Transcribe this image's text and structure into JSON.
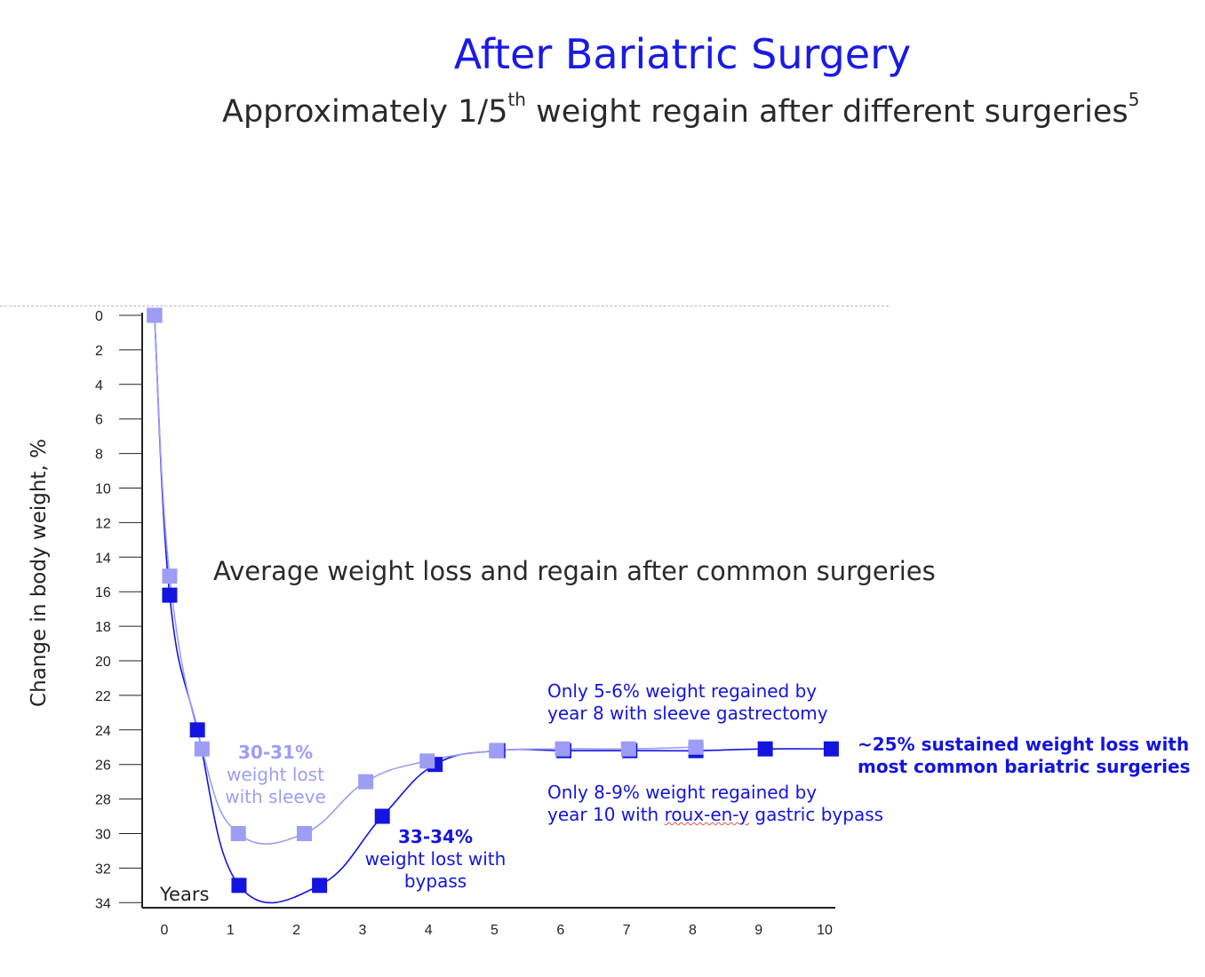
{
  "header": {
    "title": "After Bariatric Surgery",
    "subtitle_main": "Approximately 1/5",
    "subtitle_sup": "th",
    "subtitle_rest": " weight regain after different surgeries",
    "subtitle_ref": "5"
  },
  "annotations": {
    "sleeve_pct": "30-31%",
    "sleeve_text1": "weight lost",
    "sleeve_text2": "with sleeve",
    "bypass_pct": "33-34%",
    "bypass_text1": "weight lost with",
    "bypass_text2": "bypass",
    "sleeve_regain1": "Only 5-6% weight regained by",
    "sleeve_regain2": "year 8 with sleeve gastrectomy",
    "bypass_regain1": "Only 8-9% weight regained by",
    "bypass_regain2_a": "year 10 with ",
    "bypass_regain2_b": "roux-en-y",
    "bypass_regain2_c": " gastric bypass",
    "sustained1": "~25% sustained weight loss with",
    "sustained2": "most common bariatric surgeries"
  },
  "chart_data": {
    "type": "line",
    "title": "Average weight loss and regain after common surgeries",
    "ylabel": "Change in body weight, %",
    "xlabel": "Years",
    "ylim": [
      0,
      34
    ],
    "y_inverted": true,
    "xlim": [
      0,
      10
    ],
    "y_ticks": [
      0,
      2,
      4,
      6,
      8,
      10,
      12,
      14,
      16,
      18,
      20,
      22,
      24,
      26,
      28,
      30,
      32,
      34
    ],
    "x_ticks": [
      0,
      1,
      2,
      3,
      4,
      5,
      6,
      7,
      8,
      9,
      10
    ],
    "colors": {
      "sleeve": "#9d9df5",
      "bypass": "#1414e0",
      "axis": "#222222"
    },
    "series": [
      {
        "key": "bypass",
        "x": [
          -0.15,
          0.08,
          0.5,
          1.13,
          2.35,
          3.3,
          4.1,
          5.05,
          6.05,
          7.05,
          8.05,
          9.1,
          10.1
        ],
        "values": [
          0,
          16.2,
          24,
          33,
          33,
          29,
          26,
          25.2,
          25.2,
          25.2,
          25.2,
          25.1,
          25.1
        ]
      },
      {
        "key": "sleeve",
        "x": [
          -0.15,
          0.08,
          0.57,
          1.12,
          2.12,
          3.05,
          3.98,
          5.03,
          6.03,
          7.03,
          8.05
        ],
        "values": [
          0,
          15.1,
          25.1,
          30,
          30,
          27,
          25.8,
          25.2,
          25.1,
          25.1,
          25
        ]
      }
    ]
  }
}
